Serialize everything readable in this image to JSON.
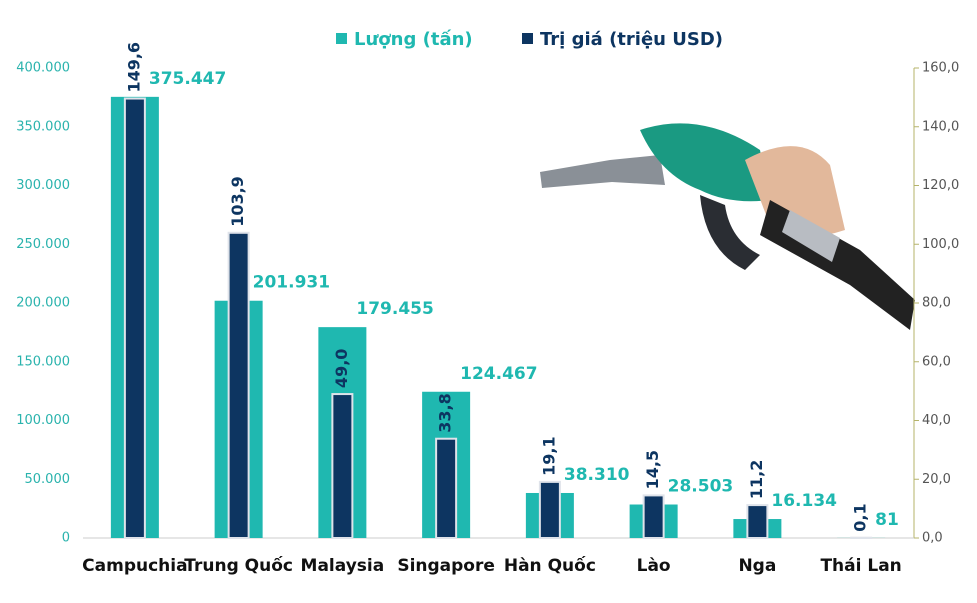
{
  "chart_data": {
    "type": "bar",
    "categories": [
      "Campuchia",
      "Trung Quốc",
      "Malaysia",
      "Singapore",
      "Hàn Quốc",
      "Lào",
      "Nga",
      "Thái Lan"
    ],
    "series": [
      {
        "name": "Lượng (tấn)",
        "color": "#1fb8b0",
        "axis": "y",
        "values": [
          375447,
          201931,
          179455,
          124467,
          38310,
          28503,
          16134,
          81
        ],
        "value_labels": [
          "375.447",
          "201.931",
          "179.455",
          "124.467",
          "38.310",
          "28.503",
          "16.134",
          "81"
        ]
      },
      {
        "name": "Trị giá (triệu USD)",
        "color": "#0d3561",
        "axis": "y2",
        "values": [
          149.6,
          103.9,
          49.0,
          33.8,
          19.1,
          14.5,
          11.2,
          0.1
        ],
        "value_labels": [
          "149,6",
          "103,9",
          "49,0",
          "33,8",
          "19,1",
          "14,5",
          "11,2",
          "0,1"
        ]
      }
    ],
    "ylim": [
      0,
      400000
    ],
    "yticks": [
      0,
      {
        "value": 50000,
        "label": "50.000"
      },
      {
        "value": 100000,
        "label": "100.000"
      },
      {
        "value": 150000,
        "label": "150.000"
      },
      {
        "value": 200000,
        "label": "200.000"
      },
      {
        "value": 250000,
        "label": "250.000"
      },
      {
        "value": 300000,
        "label": "300.000"
      },
      {
        "value": 350000,
        "label": "350.000"
      },
      {
        "value": 400000,
        "label": "400.000"
      }
    ],
    "y2lim": [
      0,
      160
    ],
    "y2ticks": [
      {
        "value": 0,
        "label": "0,0"
      },
      {
        "value": 20,
        "label": "20,0"
      },
      {
        "value": 40,
        "label": "40,0"
      },
      {
        "value": 60,
        "label": "60,0"
      },
      {
        "value": 80,
        "label": "80,0"
      },
      {
        "value": 100,
        "label": "100,0"
      },
      {
        "value": 120,
        "label": "120,0"
      },
      {
        "value": 140,
        "label": "140,0"
      },
      {
        "value": 160,
        "label": "160,0"
      }
    ]
  }
}
